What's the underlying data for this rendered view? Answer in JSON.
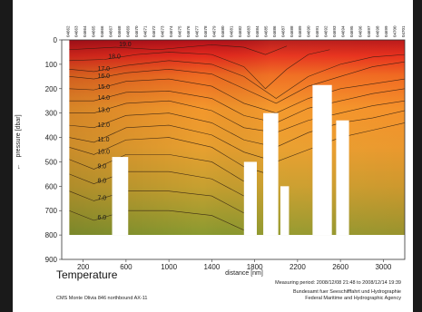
{
  "window": {
    "title": "Temperature"
  },
  "footer": {
    "measuring_period": "Measuring period: 2008/12/08 21:48 to 2008/12/14 19:39",
    "agency_line1": "Bundesamt fuer Seeschifffahrt und Hydrographie",
    "agency_line2": "Federal Maritime and Hydrographic Agency",
    "cruise": "CMS Monte Olivia 846 northbound AX-11"
  },
  "chart_data": {
    "type": "heatmap",
    "title": "Temperature",
    "xlabel": "distance [nm]",
    "ylabel": "pressure [dbar]",
    "xlim": [
      0,
      3200
    ],
    "ylim": [
      900,
      0
    ],
    "y_ticks": [
      0,
      100,
      200,
      300,
      400,
      500,
      600,
      700,
      800,
      900
    ],
    "x_ticks": [
      200,
      600,
      1000,
      1400,
      1800,
      2200,
      2600,
      3000
    ],
    "grid": false,
    "colors": {
      "cold": "#8a9a30",
      "mid": "#e8a030",
      "warm": "#e94a1f",
      "hot": "#b0101a"
    },
    "data_coverage_x": [
      70,
      3200
    ],
    "data_coverage_y_max": 800,
    "stations": [
      "04662",
      "04663",
      "04664",
      "04665",
      "04666",
      "04667",
      "04668",
      "04669",
      "04670",
      "04671",
      "04672",
      "04673",
      "04674",
      "04675",
      "04676",
      "04677",
      "04678",
      "04679",
      "04680",
      "04681",
      "04682",
      "04683",
      "04684",
      "04685",
      "04686",
      "04687",
      "04688",
      "04689",
      "04690",
      "04691",
      "04692",
      "04693",
      "04694",
      "04695",
      "04696",
      "04697",
      "04698",
      "04699",
      "04700",
      "04701"
    ],
    "contours": [
      {
        "label": "19.0",
        "points": [
          [
            70,
            40
          ],
          [
            500,
            30
          ],
          [
            900,
            40
          ],
          [
            1400,
            20
          ],
          [
            1700,
            30
          ],
          [
            1900,
            60
          ],
          [
            2100,
            25
          ]
        ]
      },
      {
        "label": "18.0",
        "points": [
          [
            70,
            85
          ],
          [
            400,
            80
          ],
          [
            700,
            60
          ],
          [
            1000,
            50
          ],
          [
            1400,
            60
          ],
          [
            1700,
            110
          ],
          [
            1900,
            200
          ],
          [
            2100,
            120
          ],
          [
            2300,
            60
          ],
          [
            2500,
            40
          ]
        ]
      },
      {
        "label": "17.0",
        "points": [
          [
            70,
            120
          ],
          [
            300,
            130
          ],
          [
            600,
            105
          ],
          [
            1000,
            85
          ],
          [
            1400,
            100
          ],
          [
            1700,
            150
          ],
          [
            2000,
            240
          ],
          [
            2300,
            150
          ],
          [
            2600,
            100
          ],
          [
            2900,
            70
          ],
          [
            3200,
            60
          ]
        ]
      },
      {
        "label": "16.0",
        "points": [
          [
            70,
            150
          ],
          [
            300,
            160
          ],
          [
            600,
            135
          ],
          [
            1000,
            120
          ],
          [
            1400,
            140
          ],
          [
            1700,
            200
          ],
          [
            2000,
            260
          ],
          [
            2300,
            190
          ],
          [
            2600,
            150
          ],
          [
            2900,
            110
          ],
          [
            3200,
            90
          ]
        ]
      },
      {
        "label": "15.0",
        "points": [
          [
            70,
            200
          ],
          [
            300,
            205
          ],
          [
            600,
            170
          ],
          [
            1000,
            160
          ],
          [
            1400,
            190
          ],
          [
            1700,
            260
          ],
          [
            2000,
            300
          ],
          [
            2300,
            240
          ],
          [
            2600,
            200
          ],
          [
            2900,
            180
          ],
          [
            3200,
            160
          ]
        ]
      },
      {
        "label": "14.0",
        "points": [
          [
            70,
            250
          ],
          [
            300,
            250
          ],
          [
            600,
            215
          ],
          [
            1000,
            210
          ],
          [
            1400,
            240
          ],
          [
            1700,
            310
          ],
          [
            2000,
            340
          ],
          [
            2300,
            280
          ],
          [
            2600,
            250
          ],
          [
            2900,
            220
          ],
          [
            3200,
            200
          ]
        ]
      },
      {
        "label": "13.0",
        "points": [
          [
            70,
            300
          ],
          [
            300,
            300
          ],
          [
            600,
            260
          ],
          [
            1000,
            250
          ],
          [
            1400,
            290
          ],
          [
            1700,
            360
          ],
          [
            2000,
            380
          ],
          [
            2300,
            330
          ],
          [
            2600,
            300
          ],
          [
            2900,
            270
          ],
          [
            3200,
            250
          ]
        ]
      },
      {
        "label": "12.0",
        "points": [
          [
            70,
            350
          ],
          [
            300,
            360
          ],
          [
            600,
            310
          ],
          [
            1000,
            300
          ],
          [
            1400,
            340
          ],
          [
            1700,
            410
          ],
          [
            2000,
            440
          ],
          [
            2300,
            380
          ],
          [
            2600,
            340
          ],
          [
            2900,
            320
          ],
          [
            3200,
            290
          ]
        ]
      },
      {
        "label": "11.0",
        "points": [
          [
            70,
            400
          ],
          [
            300,
            420
          ],
          [
            600,
            360
          ],
          [
            1000,
            350
          ],
          [
            1400,
            390
          ],
          [
            1700,
            460
          ],
          [
            2000,
            500
          ],
          [
            2300,
            450
          ],
          [
            2600,
            400
          ],
          [
            2900,
            370
          ],
          [
            3200,
            340
          ]
        ]
      },
      {
        "label": "10.0",
        "points": [
          [
            70,
            440
          ],
          [
            300,
            470
          ],
          [
            600,
            410
          ],
          [
            1000,
            400
          ],
          [
            1400,
            440
          ],
          [
            1700,
            520
          ],
          [
            2000,
            560
          ]
        ]
      },
      {
        "label": "9.0",
        "points": [
          [
            70,
            490
          ],
          [
            300,
            530
          ],
          [
            600,
            470
          ],
          [
            1000,
            470
          ],
          [
            1400,
            500
          ],
          [
            1700,
            580
          ]
        ]
      },
      {
        "label": "8.0",
        "points": [
          [
            70,
            550
          ],
          [
            300,
            590
          ],
          [
            600,
            540
          ],
          [
            1000,
            540
          ],
          [
            1400,
            570
          ],
          [
            1700,
            640
          ]
        ]
      },
      {
        "label": "7.0",
        "points": [
          [
            70,
            620
          ],
          [
            300,
            660
          ],
          [
            600,
            620
          ],
          [
            1000,
            620
          ],
          [
            1400,
            640
          ],
          [
            1700,
            710
          ]
        ]
      },
      {
        "label": "6.0",
        "points": [
          [
            70,
            700
          ],
          [
            300,
            740
          ],
          [
            600,
            700
          ],
          [
            1000,
            700
          ],
          [
            1400,
            720
          ],
          [
            1700,
            780
          ]
        ]
      }
    ],
    "gaps": [
      {
        "x0": 470,
        "x1": 620,
        "y0": 480,
        "y1": 900
      },
      {
        "x0": 1700,
        "x1": 1820,
        "y0": 500,
        "y1": 900
      },
      {
        "x0": 1880,
        "x1": 2020,
        "y0": 300,
        "y1": 900
      },
      {
        "x0": 2040,
        "x1": 2120,
        "y0": 600,
        "y1": 900
      },
      {
        "x0": 2340,
        "x1": 2520,
        "y0": 185,
        "y1": 900
      },
      {
        "x0": 2560,
        "x1": 2680,
        "y0": 330,
        "y1": 900
      },
      {
        "x0": 2700,
        "x1": 3200,
        "y0": 800,
        "y1": 900
      }
    ]
  }
}
